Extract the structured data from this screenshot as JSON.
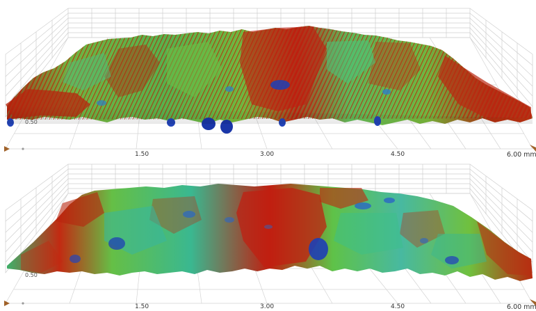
{
  "views": [
    {
      "x_ticks": [
        "1.50",
        "3.00",
        "4.50",
        "6.00 mm"
      ],
      "z_tick": "0.50"
    },
    {
      "x_ticks": [
        "1.50",
        "3.00",
        "4.50",
        "6.00 mm"
      ],
      "z_tick": "0.50"
    }
  ],
  "colors": {
    "grid": "#c8c8c8",
    "high": "#c21c0c",
    "mid": "#6fc23a",
    "mid_cyan": "#2fb7a8",
    "low": "#1d3fb6",
    "marker": "#a0622a"
  }
}
